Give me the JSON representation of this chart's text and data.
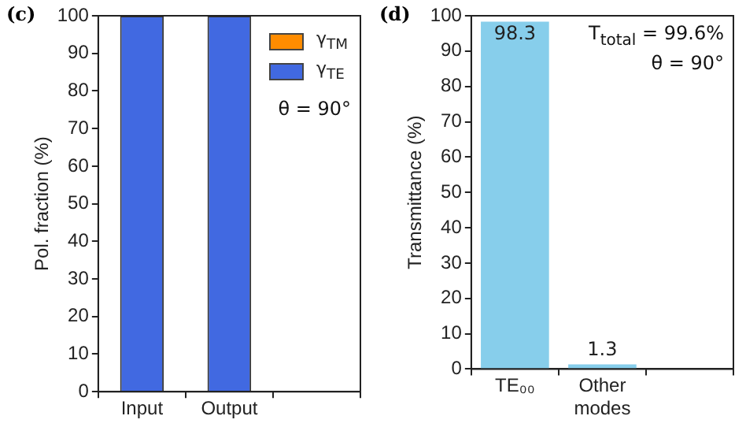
{
  "chart_data": [
    {
      "type": "bar",
      "stacked": true,
      "categories": [
        "Input",
        "Output",
        null
      ],
      "ylabel": "Pol. fraction (%)",
      "ylim": [
        0,
        100
      ],
      "yticks": [
        0,
        10,
        20,
        30,
        40,
        50,
        60,
        70,
        80,
        90,
        100
      ],
      "legend": "top right",
      "annotations": [
        "(c)",
        "θ = 90°"
      ],
      "series": [
        {
          "name": "γ$_{TE}$",
          "color": "#4169e1",
          "values": [
            100,
            100,
            null
          ]
        },
        {
          "name": "γ$_{TM}$",
          "color": "#ff8c00",
          "values": [
            0,
            0,
            null
          ]
        }
      ]
    },
    {
      "type": "bar",
      "categories": [
        "TE₀₀",
        "Other modes",
        null
      ],
      "ylabel": "Transmittance (%)",
      "ylim": [
        0,
        100
      ],
      "yticks": [
        0,
        10,
        20,
        30,
        40,
        50,
        60,
        70,
        80,
        90,
        100
      ],
      "data_labels": true,
      "annotations": [
        "(d)",
        "T$_{total}$ = 99.6%",
        "θ = 90°"
      ],
      "series": [
        {
          "color": "#87ceeb",
          "values": [
            98.3,
            1.3,
            null
          ]
        }
      ]
    }
  ]
}
